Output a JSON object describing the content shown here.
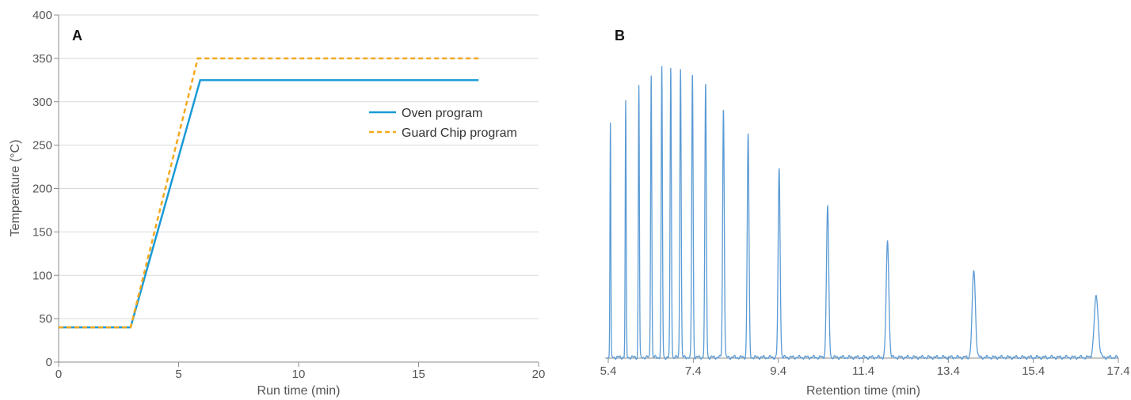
{
  "colors": {
    "oven": "#1a9ad6",
    "guard": "#f2a91e",
    "chromatogram": "#5b9bd5",
    "grid": "#d9d9d9",
    "axis": "#8c8c8c"
  },
  "chart_data": [
    {
      "type": "line",
      "panel_label": "A",
      "xlabel": "Run time (min)",
      "ylabel": "Temperature (°C)",
      "xlim": [
        0,
        20
      ],
      "ylim": [
        0,
        400
      ],
      "xticks": [
        0,
        5,
        10,
        15,
        20
      ],
      "yticks": [
        0,
        50,
        100,
        150,
        200,
        250,
        300,
        350,
        400
      ],
      "grid": true,
      "legend_position": "right",
      "series": [
        {
          "name": "Oven program",
          "style": "solid",
          "x": [
            0,
            3,
            5.9,
            17.5
          ],
          "y": [
            40,
            40,
            325,
            325
          ]
        },
        {
          "name": "Guard Chip program",
          "style": "dashed",
          "x": [
            0,
            3,
            5.8,
            17.5
          ],
          "y": [
            40,
            40,
            350,
            350
          ]
        }
      ]
    },
    {
      "type": "line",
      "panel_label": "B",
      "xlabel": "Retention time (min)",
      "xlim": [
        5.4,
        17.4
      ],
      "xticks": [
        5.4,
        7.4,
        9.4,
        11.4,
        13.4,
        15.4,
        17.4
      ],
      "grid": false,
      "peaks": [
        {
          "rt": 5.45,
          "h": 0.81
        },
        {
          "rt": 5.81,
          "h": 0.88
        },
        {
          "rt": 6.12,
          "h": 0.94
        },
        {
          "rt": 6.41,
          "h": 0.98
        },
        {
          "rt": 6.66,
          "h": 1.0
        },
        {
          "rt": 6.87,
          "h": 1.0
        },
        {
          "rt": 7.1,
          "h": 1.0
        },
        {
          "rt": 7.38,
          "h": 0.98
        },
        {
          "rt": 7.69,
          "h": 0.94
        },
        {
          "rt": 8.11,
          "h": 0.86
        },
        {
          "rt": 8.69,
          "h": 0.77
        },
        {
          "rt": 9.42,
          "h": 0.65
        },
        {
          "rt": 10.56,
          "h": 0.52
        },
        {
          "rt": 11.97,
          "h": 0.4
        },
        {
          "rt": 14.0,
          "h": 0.3
        },
        {
          "rt": 16.88,
          "h": 0.21
        }
      ]
    }
  ]
}
